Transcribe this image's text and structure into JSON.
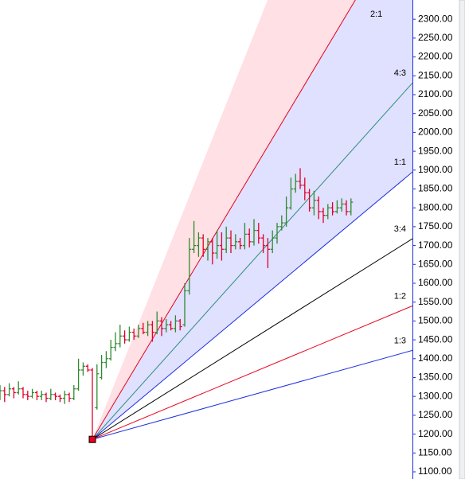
{
  "chart_data": {
    "type": "ohlc",
    "open": [
      1300,
      1315,
      1305,
      1320,
      1310,
      1320,
      1305,
      1300,
      1310,
      1300,
      1305,
      1295,
      1305,
      1300,
      1295,
      1305,
      1295,
      1320,
      1370,
      1380,
      1370,
      1270,
      1350,
      1390,
      1400,
      1430,
      1440,
      1460,
      1450,
      1470,
      1460,
      1480,
      1470,
      1490,
      1470,
      1500,
      1480,
      1490,
      1480,
      1500,
      1490,
      1580,
      1690,
      1700,
      1720,
      1690,
      1710,
      1680,
      1700,
      1690,
      1720,
      1700,
      1710,
      1700,
      1730,
      1710,
      1740,
      1720,
      1700,
      1690,
      1720,
      1750,
      1760,
      1800,
      1850,
      1870,
      1860,
      1840,
      1800,
      1820,
      1790,
      1780,
      1800,
      1790,
      1800,
      1810,
      1790
    ],
    "high": [
      1330,
      1325,
      1335,
      1325,
      1340,
      1325,
      1315,
      1320,
      1315,
      1315,
      1310,
      1320,
      1310,
      1305,
      1315,
      1310,
      1330,
      1400,
      1390,
      1385,
      1375,
      1385,
      1410,
      1420,
      1450,
      1470,
      1490,
      1475,
      1485,
      1480,
      1490,
      1495,
      1500,
      1500,
      1525,
      1510,
      1505,
      1500,
      1515,
      1505,
      1600,
      1720,
      1765,
      1735,
      1730,
      1720,
      1720,
      1740,
      1735,
      1750,
      1740,
      1730,
      1720,
      1760,
      1745,
      1770,
      1760,
      1730,
      1720,
      1740,
      1760,
      1780,
      1830,
      1880,
      1890,
      1905,
      1880,
      1850,
      1845,
      1830,
      1800,
      1810,
      1815,
      1820,
      1825,
      1820,
      1825
    ],
    "low": [
      1290,
      1285,
      1300,
      1295,
      1305,
      1295,
      1290,
      1295,
      1290,
      1290,
      1285,
      1290,
      1290,
      1285,
      1280,
      1285,
      1290,
      1315,
      1355,
      1365,
      1186,
      1265,
      1345,
      1375,
      1395,
      1420,
      1430,
      1440,
      1445,
      1450,
      1455,
      1465,
      1460,
      1445,
      1465,
      1460,
      1470,
      1475,
      1470,
      1475,
      1485,
      1570,
      1680,
      1670,
      1670,
      1660,
      1650,
      1665,
      1660,
      1680,
      1680,
      1690,
      1690,
      1690,
      1695,
      1700,
      1705,
      1680,
      1640,
      1680,
      1705,
      1740,
      1750,
      1795,
      1840,
      1850,
      1820,
      1790,
      1780,
      1770,
      1760,
      1770,
      1780,
      1785,
      1790,
      1780,
      1780
    ],
    "close": [
      1315,
      1305,
      1320,
      1310,
      1320,
      1305,
      1300,
      1310,
      1300,
      1305,
      1295,
      1305,
      1300,
      1295,
      1305,
      1295,
      1320,
      1370,
      1380,
      1370,
      1190,
      1360,
      1390,
      1400,
      1430,
      1440,
      1460,
      1450,
      1470,
      1460,
      1480,
      1470,
      1490,
      1470,
      1500,
      1480,
      1490,
      1480,
      1500,
      1485,
      1580,
      1690,
      1700,
      1720,
      1690,
      1710,
      1680,
      1700,
      1690,
      1720,
      1700,
      1710,
      1700,
      1730,
      1710,
      1740,
      1720,
      1700,
      1690,
      1720,
      1750,
      1760,
      1800,
      1850,
      1870,
      1860,
      1840,
      1800,
      1820,
      1790,
      1780,
      1800,
      1790,
      1800,
      1810,
      1790,
      1815
    ],
    "up_color": "#2e8b2e",
    "down_color": "#e0002a",
    "fan_origin_index": 20,
    "fan": [
      {
        "name": "2:1",
        "end": 2604,
        "color": "#e8001c"
      },
      {
        "name": "4:3",
        "end": 2131,
        "color": "#2a8f7a"
      },
      {
        "name": "1:1",
        "end": 1895,
        "color": "#1a2ee0"
      },
      {
        "name": "3:4",
        "end": 1718,
        "color": "#000000"
      },
      {
        "name": "1:2",
        "end": 1540,
        "color": "#e8001c"
      },
      {
        "name": "1:3",
        "end": 1422,
        "color": "#1a2ee0"
      }
    ],
    "ylim": [
      1081,
      2351
    ],
    "yticks": [
      {
        "value": 1100,
        "label": "1100.00"
      },
      {
        "value": 1150,
        "label": "1150.00"
      },
      {
        "value": 1200,
        "label": "1200.00"
      },
      {
        "value": 1250,
        "label": "1250.00"
      },
      {
        "value": 1300,
        "label": "1300.00"
      },
      {
        "value": 1350,
        "label": "1350.00"
      },
      {
        "value": 1400,
        "label": "1400.00"
      },
      {
        "value": 1450,
        "label": "1450.00"
      },
      {
        "value": 1500,
        "label": "1500.00"
      },
      {
        "value": 1550,
        "label": "1550.00"
      },
      {
        "value": 1600,
        "label": "1600.00"
      },
      {
        "value": 1650,
        "label": "1650.00"
      },
      {
        "value": 1700,
        "label": "1700.00"
      },
      {
        "value": 1750,
        "label": "1750.00"
      },
      {
        "value": 1800,
        "label": "1800.00"
      },
      {
        "value": 1850,
        "label": "1850.00"
      },
      {
        "value": 1900,
        "label": "1900.00"
      },
      {
        "value": 1950,
        "label": "1950.00"
      },
      {
        "value": 2000,
        "label": "2000.00"
      },
      {
        "value": 2050,
        "label": "2050.00"
      },
      {
        "value": 2100,
        "label": "2100.00"
      },
      {
        "value": 2150,
        "label": "2150.00"
      },
      {
        "value": 2200,
        "label": "2200.00"
      },
      {
        "value": 2250,
        "label": "2250.00"
      },
      {
        "value": 2300,
        "label": "2300.00"
      }
    ]
  }
}
